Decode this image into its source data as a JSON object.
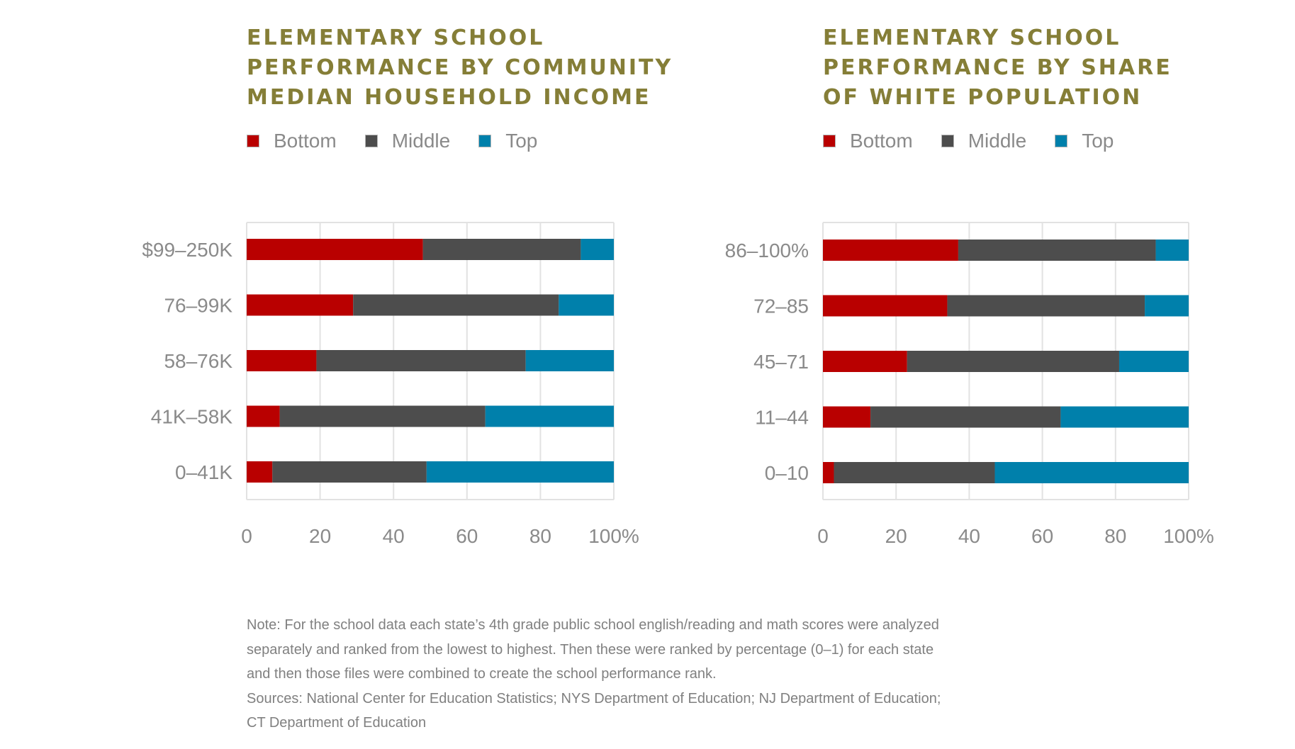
{
  "legend_colors": {
    "Bottom": "#b90000",
    "Middle": "#4d4d4d",
    "Top": "#0080ab"
  },
  "chart_data": [
    {
      "type": "bar",
      "orientation": "horizontal",
      "stacked": true,
      "title": "ELEMENTARY SCHOOL\nPERFORMANCE BY COMMUNITY\nMEDIAN HOUSEHOLD INCOME",
      "legend": [
        "Bottom",
        "Middle",
        "Top"
      ],
      "legend_position": "top-left",
      "categories": [
        "$99–250K",
        "76–99K",
        "58–76K",
        "41K–58K",
        "0–41K"
      ],
      "series": [
        {
          "name": "Bottom",
          "color": "#b90000",
          "values": [
            48,
            29,
            19,
            9,
            7
          ]
        },
        {
          "name": "Middle",
          "color": "#4d4d4d",
          "values": [
            43,
            56,
            57,
            56,
            42
          ]
        },
        {
          "name": "Top",
          "color": "#0080ab",
          "values": [
            9,
            15,
            24,
            35,
            51
          ]
        }
      ],
      "xlim": [
        0,
        100
      ],
      "xticks": [
        "0",
        "20",
        "40",
        "60",
        "80",
        "100%"
      ],
      "grid": true
    },
    {
      "type": "bar",
      "orientation": "horizontal",
      "stacked": true,
      "title": "ELEMENTARY SCHOOL\nPERFORMANCE BY SHARE\nOF WHITE POPULATION",
      "legend": [
        "Bottom",
        "Middle",
        "Top"
      ],
      "legend_position": "top-left",
      "categories": [
        "86–100%",
        "72–85",
        "45–71",
        "11–44",
        "0–10"
      ],
      "series": [
        {
          "name": "Bottom",
          "color": "#b90000",
          "values": [
            37,
            34,
            23,
            13,
            3
          ]
        },
        {
          "name": "Middle",
          "color": "#4d4d4d",
          "values": [
            54,
            54,
            58,
            52,
            44
          ]
        },
        {
          "name": "Top",
          "color": "#0080ab",
          "values": [
            9,
            12,
            19,
            35,
            53
          ]
        }
      ],
      "xlim": [
        0,
        100
      ],
      "xticks": [
        "0",
        "20",
        "40",
        "60",
        "80",
        "100%"
      ],
      "grid": true
    }
  ],
  "notes": [
    "Note: For the school data each state’s 4th grade public school english/reading and math scores were analyzed",
    "separately and ranked from the lowest to highest. Then these were ranked by percentage (0–1) for each state",
    "and then those files were combined to create the school performance rank.",
    "Sources: National Center for Education Statistics; NYS Department of Education; NJ Department of Education;",
    "CT Department of Education"
  ]
}
